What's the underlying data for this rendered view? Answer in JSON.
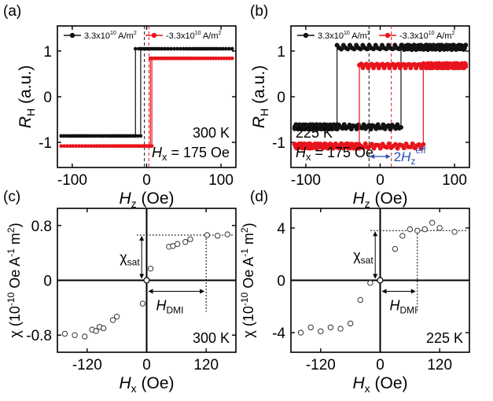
{
  "colors": {
    "black": "#111111",
    "red": "#e8141c",
    "blue": "#2b4fb0",
    "axis": "#000000"
  },
  "chart_data": [
    {
      "panel": "a",
      "type": "line",
      "panel_label": "(a)",
      "xlabel_main": "H",
      "xlabel_sub": "z",
      "xlabel_unit": "(Oe)",
      "ylabel_main": "R",
      "ylabel_sub": "H",
      "ylabel_unit": "(a.u.)",
      "xlim": [
        -120,
        120
      ],
      "ylim": [
        -1.55,
        1.55
      ],
      "xticks": [
        "-100",
        "0",
        "100"
      ],
      "xtick_values": [
        -100,
        0,
        100
      ],
      "yticks": [
        "-1",
        "0",
        "1"
      ],
      "ytick_values": [
        -1,
        0,
        1
      ],
      "legend": [
        {
          "label_pre": "3.3x10",
          "label_exp": "10",
          "label_post": " A/m",
          "label_exp2": "2"
        },
        {
          "label_pre": "-3.3x10",
          "label_exp": "10",
          "label_post": " A/m",
          "label_exp2": "2"
        }
      ],
      "annotation_temp": "300 K",
      "annotation_field_main": "H",
      "annotation_field_sub": "x",
      "annotation_field_val": " = 175 Oe",
      "vlines": [
        -3,
        3
      ],
      "series": [
        {
          "name": "3.3x10^10 A/m^2",
          "color_key": "black",
          "low": -0.86,
          "high": 1.05,
          "sw_up": -8,
          "sw_down": -15
        },
        {
          "name": "-3.3x10^10 A/m^2",
          "color_key": "red",
          "low": -1.08,
          "high": 0.84,
          "sw_up": 5,
          "sw_down": 7
        }
      ]
    },
    {
      "panel": "b",
      "type": "line",
      "panel_label": "(b)",
      "xlabel_main": "H",
      "xlabel_sub": "z",
      "xlabel_unit": "(Oe)",
      "ylabel_main": "R",
      "ylabel_sub": "H",
      "ylabel_unit": "(a.u.)",
      "xlim": [
        -120,
        120
      ],
      "ylim": [
        -1.55,
        1.55
      ],
      "xticks": [
        "-100",
        "0",
        "100"
      ],
      "xtick_values": [
        -100,
        0,
        100
      ],
      "yticks": [
        "-1",
        "0",
        "1"
      ],
      "ytick_values": [
        -1,
        0,
        1
      ],
      "legend": [
        {
          "label_pre": "3.3x10",
          "label_exp": "10",
          "label_post": " A/m",
          "label_exp2": "2"
        },
        {
          "label_pre": "-3.3x10",
          "label_exp": "10",
          "label_post": " A/m",
          "label_exp2": "2"
        }
      ],
      "annotation_temp": "225 K",
      "annotation_field_main": "H",
      "annotation_field_sub": "x",
      "annotation_field_val": " = 175 Oe",
      "annotation_heff_pre": "2",
      "annotation_heff_main": "H",
      "annotation_heff_sub": "z",
      "annotation_heff_sup": "eff",
      "vlines": [
        -15,
        15
      ],
      "series": [
        {
          "name": "3.3x10^10 A/m^2",
          "color_key": "black",
          "low": -0.66,
          "high": 1.08,
          "sw_up": 28,
          "sw_down": -58
        },
        {
          "name": "-3.3x10^10 A/m^2",
          "color_key": "red",
          "low": -1.08,
          "high": 0.68,
          "sw_up": 58,
          "sw_down": -28
        }
      ]
    },
    {
      "panel": "c",
      "type": "scatter",
      "panel_label": "(c)",
      "xlabel_main": "H",
      "xlabel_sub": "x",
      "xlabel_unit": "(Oe)",
      "ylabel_text": "χ (10",
      "ylabel_exp": "-10",
      "ylabel_mid": " Oe A",
      "ylabel_exp2": "-1",
      "ylabel_mid2": " m",
      "ylabel_exp3": "2",
      "ylabel_end": ")",
      "xlim": [
        -180,
        180
      ],
      "ylim": [
        -1.05,
        1.05
      ],
      "xticks": [
        "-120",
        "0",
        "120"
      ],
      "xtick_values": [
        -120,
        0,
        120
      ],
      "yticks": [
        "-0.8",
        "0",
        "0.8"
      ],
      "ytick_values": [
        -0.8,
        0,
        0.8
      ],
      "annotation_temp": "300 K",
      "chi_sat_main": "χ",
      "chi_sat_sub": "sat",
      "hdmi_main": "H",
      "hdmi_sub": "DMI",
      "chi_sat_value": 0.66,
      "hdmi_value": 120,
      "x": [
        -165,
        -145,
        -125,
        -110,
        -102,
        -95,
        -87,
        -68,
        -60,
        -8,
        8,
        45,
        53,
        62,
        78,
        88,
        122,
        143,
        163
      ],
      "y": [
        -0.78,
        -0.8,
        -0.82,
        -0.72,
        -0.74,
        -0.68,
        -0.7,
        -0.58,
        -0.53,
        -0.34,
        0.17,
        0.49,
        0.5,
        0.53,
        0.56,
        0.6,
        0.66,
        0.65,
        0.67
      ]
    },
    {
      "panel": "d",
      "type": "scatter",
      "panel_label": "(d)",
      "xlabel_main": "H",
      "xlabel_sub": "x",
      "xlabel_unit": "(Oe)",
      "ylabel_text": "χ (10",
      "ylabel_exp": "-10",
      "ylabel_mid": " Oe A",
      "ylabel_exp2": "-1",
      "ylabel_mid2": " m",
      "ylabel_exp3": "2",
      "ylabel_end": ")",
      "xlim": [
        -180,
        180
      ],
      "ylim": [
        -5.5,
        5.5
      ],
      "xticks": [
        "-120",
        "0",
        "120"
      ],
      "xtick_values": [
        -120,
        0,
        120
      ],
      "yticks": [
        "-4",
        "0",
        "4"
      ],
      "ytick_values": [
        -4,
        0,
        4
      ],
      "annotation_temp": "225 K",
      "chi_sat_main": "χ",
      "chi_sat_sub": "sat",
      "hdmi_main": "H",
      "hdmi_sub": "DMI",
      "chi_sat_value": 3.8,
      "hdmi_value": 75,
      "x": [
        -160,
        -140,
        -120,
        -100,
        -80,
        -60,
        -40,
        -20,
        0,
        30,
        45,
        60,
        75,
        90,
        105,
        120,
        150
      ],
      "y": [
        -4.0,
        -3.6,
        -3.9,
        -3.6,
        -3.7,
        -3.3,
        -1.5,
        -0.2,
        0.0,
        2.4,
        3.4,
        3.9,
        3.8,
        3.9,
        4.4,
        4.0,
        3.7
      ]
    }
  ]
}
